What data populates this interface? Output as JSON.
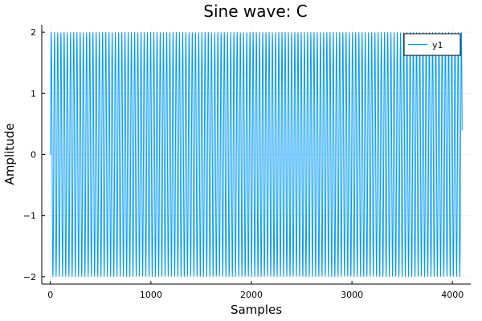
{
  "chart_data": {
    "type": "line",
    "title": "Sine wave: C",
    "xlabel": "Samples",
    "ylabel": "Amplitude",
    "xlim": [
      -86,
      4182
    ],
    "ylim": [
      -2.12,
      2.12
    ],
    "xticks": [
      0,
      1000,
      2000,
      3000,
      4000
    ],
    "xtick_labels": [
      "0",
      "1000",
      "2000",
      "3000",
      "4000"
    ],
    "yticks": [
      -2,
      -1,
      0,
      1,
      2
    ],
    "ytick_labels": [
      "−2",
      "−1",
      "0",
      "1",
      "2"
    ],
    "grid": true,
    "legend_position": "top-right",
    "series": [
      {
        "name": "y1",
        "color": "#009AFA",
        "function": "amplitude * sin(2*pi*cycles*(x-1)/n_samples)",
        "amplitude": 2,
        "n_samples": 4096,
        "cycles": 128.5
      }
    ]
  }
}
